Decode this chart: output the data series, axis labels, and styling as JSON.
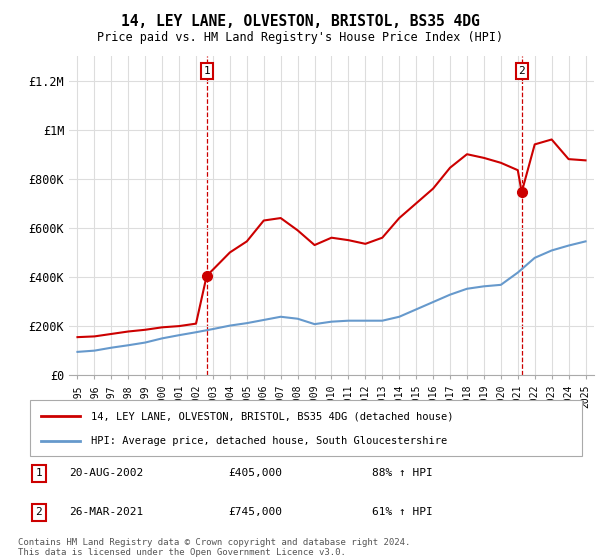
{
  "title": "14, LEY LANE, OLVESTON, BRISTOL, BS35 4DG",
  "subtitle": "Price paid vs. HM Land Registry's House Price Index (HPI)",
  "legend_line1": "14, LEY LANE, OLVESTON, BRISTOL, BS35 4DG (detached house)",
  "legend_line2": "HPI: Average price, detached house, South Gloucestershire",
  "footnote": "Contains HM Land Registry data © Crown copyright and database right 2024.\nThis data is licensed under the Open Government Licence v3.0.",
  "annotation1_label": "1",
  "annotation1_date": "20-AUG-2002",
  "annotation1_price": "£405,000",
  "annotation1_hpi": "88% ↑ HPI",
  "annotation1_year": 2002.63,
  "annotation1_value": 405000,
  "annotation2_label": "2",
  "annotation2_date": "26-MAR-2021",
  "annotation2_price": "£745,000",
  "annotation2_hpi": "61% ↑ HPI",
  "annotation2_year": 2021.23,
  "annotation2_value": 745000,
  "red_color": "#cc0000",
  "blue_color": "#6699cc",
  "background_color": "#ffffff",
  "grid_color": "#dddddd",
  "ylim": [
    0,
    1300000
  ],
  "yticks": [
    0,
    200000,
    400000,
    600000,
    800000,
    1000000,
    1200000
  ],
  "ytick_labels": [
    "£0",
    "£200K",
    "£400K",
    "£600K",
    "£800K",
    "£1M",
    "£1.2M"
  ],
  "red_x": [
    1995,
    1996,
    1997,
    1998,
    1999,
    2000,
    2001,
    2002,
    2002.63,
    2003,
    2004,
    2005,
    2006,
    2007,
    2008,
    2009,
    2010,
    2011,
    2012,
    2013,
    2014,
    2015,
    2016,
    2017,
    2018,
    2019,
    2020,
    2021,
    2021.23,
    2022,
    2023,
    2024,
    2025
  ],
  "red_y": [
    155000,
    158000,
    168000,
    178000,
    185000,
    195000,
    200000,
    210000,
    405000,
    430000,
    500000,
    545000,
    630000,
    640000,
    590000,
    530000,
    560000,
    550000,
    535000,
    560000,
    640000,
    700000,
    760000,
    845000,
    900000,
    885000,
    865000,
    835000,
    745000,
    940000,
    960000,
    880000,
    875000
  ],
  "blue_x": [
    1995,
    1996,
    1997,
    1998,
    1999,
    2000,
    2001,
    2002,
    2003,
    2004,
    2005,
    2006,
    2007,
    2008,
    2009,
    2010,
    2011,
    2012,
    2013,
    2014,
    2015,
    2016,
    2017,
    2018,
    2019,
    2020,
    2021,
    2022,
    2023,
    2024,
    2025
  ],
  "blue_y": [
    95000,
    100000,
    112000,
    122000,
    133000,
    150000,
    163000,
    175000,
    188000,
    202000,
    212000,
    225000,
    238000,
    230000,
    208000,
    218000,
    222000,
    222000,
    222000,
    238000,
    268000,
    298000,
    328000,
    352000,
    362000,
    368000,
    418000,
    478000,
    508000,
    528000,
    545000
  ],
  "xlim_left": 1994.5,
  "xlim_right": 2025.5
}
